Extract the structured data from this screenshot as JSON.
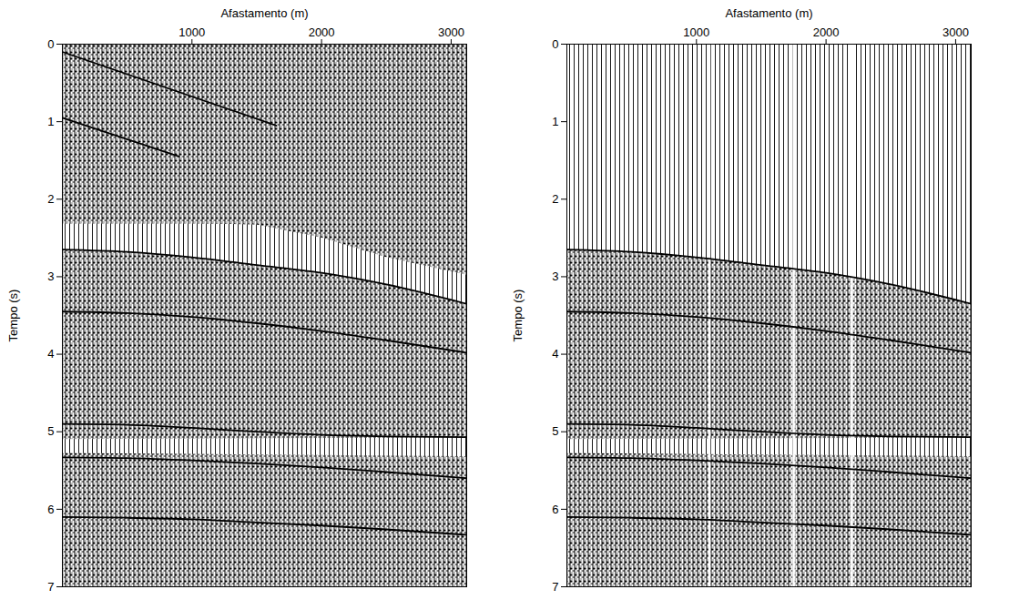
{
  "chart_data": [
    {
      "type": "seismic",
      "x_label": "Afastamento (m)",
      "y_label": "Tempo (s)",
      "xlim": [
        0,
        3120
      ],
      "xticks": [
        1000,
        2000,
        3000
      ],
      "ylim": [
        7,
        0
      ],
      "yticks": [
        0,
        1,
        2,
        3,
        4,
        5,
        6,
        7
      ],
      "blank_zones": [
        {
          "x": [
            0,
            500,
            1000,
            1500,
            2000,
            2500,
            3120
          ],
          "y_top": [
            2.32,
            2.32,
            2.32,
            2.33,
            2.5,
            2.75,
            2.98
          ],
          "y_bottom": [
            2.65,
            2.68,
            2.75,
            2.85,
            2.95,
            3.1,
            3.35
          ]
        },
        {
          "x": [
            0,
            3120
          ],
          "y_top": [
            5.1,
            5.08
          ],
          "y_bottom": [
            5.28,
            5.32
          ]
        }
      ],
      "events": [
        {
          "x": [
            0,
            1650
          ],
          "y": [
            0.1,
            1.05
          ]
        },
        {
          "x": [
            0,
            900
          ],
          "y": [
            0.95,
            1.45
          ]
        },
        {
          "x": [
            0,
            500,
            1000,
            1500,
            2000,
            2500,
            3120
          ],
          "y": [
            2.65,
            2.68,
            2.75,
            2.85,
            2.95,
            3.1,
            3.35
          ]
        },
        {
          "x": [
            0,
            500,
            1000,
            1500,
            2000,
            2500,
            3120
          ],
          "y": [
            3.45,
            3.47,
            3.52,
            3.6,
            3.7,
            3.82,
            3.98
          ]
        },
        {
          "x": [
            0,
            500,
            1000,
            1500,
            2000,
            2500,
            3120
          ],
          "y": [
            4.9,
            4.91,
            4.95,
            5.0,
            5.04,
            5.06,
            5.07
          ]
        },
        {
          "x": [
            0,
            500,
            1000,
            1500,
            2000,
            2500,
            3120
          ],
          "y": [
            5.33,
            5.34,
            5.37,
            5.41,
            5.46,
            5.52,
            5.6
          ]
        },
        {
          "x": [
            0,
            500,
            1000,
            1500,
            2000,
            2500,
            3120
          ],
          "y": [
            6.1,
            6.11,
            6.13,
            6.17,
            6.21,
            6.26,
            6.33
          ]
        }
      ]
    },
    {
      "type": "seismic",
      "x_label": "Afastamento (m)",
      "y_label": "Tempo (s)",
      "xlim": [
        0,
        3120
      ],
      "xticks": [
        1000,
        2000,
        3000
      ],
      "ylim": [
        7,
        0
      ],
      "yticks": [
        0,
        1,
        2,
        3,
        4,
        5,
        6,
        7
      ],
      "blank_zones": [
        {
          "x": [
            0,
            500,
            1000,
            1500,
            2000,
            2500,
            3120
          ],
          "y_top": [
            0,
            0,
            0,
            0,
            0,
            0,
            0
          ],
          "y_bottom": [
            2.65,
            2.68,
            2.75,
            2.85,
            2.95,
            3.1,
            3.35
          ]
        },
        {
          "x": [
            0,
            3120
          ],
          "y_top": [
            5.1,
            5.08
          ],
          "y_bottom": [
            5.28,
            5.32
          ]
        }
      ],
      "dead_traces": [
        1100,
        1750,
        2200
      ],
      "events": [
        {
          "x": [
            0,
            500,
            1000,
            1500,
            2000,
            2500,
            3120
          ],
          "y": [
            2.65,
            2.68,
            2.75,
            2.85,
            2.95,
            3.1,
            3.35
          ]
        },
        {
          "x": [
            0,
            500,
            1000,
            1500,
            2000,
            2500,
            3120
          ],
          "y": [
            3.45,
            3.47,
            3.52,
            3.6,
            3.7,
            3.82,
            3.98
          ]
        },
        {
          "x": [
            0,
            500,
            1000,
            1500,
            2000,
            2500,
            3120
          ],
          "y": [
            4.9,
            4.91,
            4.95,
            5.0,
            5.04,
            5.06,
            5.07
          ]
        },
        {
          "x": [
            0,
            500,
            1000,
            1500,
            2000,
            2500,
            3120
          ],
          "y": [
            5.33,
            5.34,
            5.37,
            5.41,
            5.46,
            5.52,
            5.6
          ]
        },
        {
          "x": [
            0,
            500,
            1000,
            1500,
            2000,
            2500,
            3120
          ],
          "y": [
            6.1,
            6.11,
            6.13,
            6.17,
            6.21,
            6.26,
            6.33
          ]
        }
      ]
    }
  ]
}
